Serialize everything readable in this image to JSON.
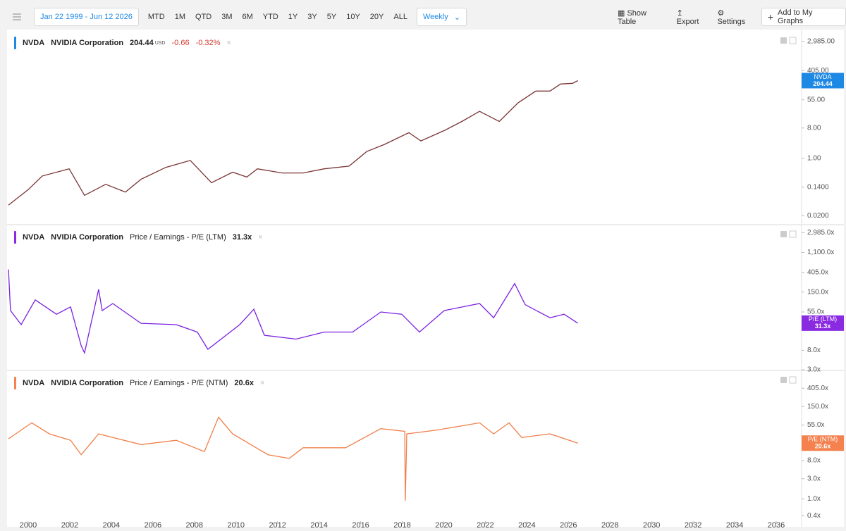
{
  "toolbar": {
    "date_range": "Jan 22 1999 - Jun 12 2026",
    "ranges": [
      "MTD",
      "1M",
      "QTD",
      "3M",
      "6M",
      "YTD",
      "1Y",
      "3Y",
      "5Y",
      "10Y",
      "20Y",
      "ALL"
    ],
    "frequency": "Weekly",
    "show_table": "Show Table",
    "export": "Export",
    "settings": "Settings",
    "add": "Add to My Graphs"
  },
  "chart_data": [
    {
      "type": "line",
      "log_scale": true,
      "header": {
        "ticker": "NVDA",
        "company": "NVIDIA Corporation",
        "last": "204.44",
        "currency": "USD",
        "change": "-0.66",
        "change_pct": "-0.32%"
      },
      "badge": {
        "name": "NVDA",
        "value": "204.44",
        "color": "#1e88e5"
      },
      "color": "#7a3434",
      "x": [
        1999.05,
        2000.0,
        2000.68,
        2001.97,
        2002.71,
        2003.73,
        2004.68,
        2005.43,
        2006.62,
        2007.8,
        2008.82,
        2009.84,
        2010.52,
        2011.03,
        2012.22,
        2013.23,
        2014.25,
        2015.44,
        2016.29,
        2017.14,
        2018.32,
        2018.9,
        2020.02,
        2020.87,
        2021.72,
        2022.67,
        2023.58,
        2024.43,
        2025.11,
        2025.62,
        2026.2,
        2026.45
      ],
      "values": [
        0.041,
        0.118,
        0.3,
        0.49,
        0.08,
        0.17,
        0.1,
        0.24,
        0.54,
        0.87,
        0.19,
        0.39,
        0.28,
        0.49,
        0.37,
        0.37,
        0.49,
        0.59,
        1.6,
        2.6,
        5.8,
        3.3,
        6.7,
        12.5,
        25,
        12.5,
        45,
        100,
        100,
        162,
        170,
        204.44
      ],
      "xlim": [
        1999.05,
        2037.22
      ],
      "ylim": [
        0.0113,
        5800
      ],
      "yticks": [
        {
          "value": 2985,
          "label": "2,985.00"
        },
        {
          "value": 405,
          "label": "405.00"
        },
        {
          "value": 55,
          "label": "55.00"
        },
        {
          "value": 8,
          "label": "8.00"
        },
        {
          "value": 1,
          "label": "1.00"
        },
        {
          "value": 0.14,
          "label": "0.1400"
        },
        {
          "value": 0.02,
          "label": "0.0200"
        }
      ]
    },
    {
      "type": "line",
      "log_scale": true,
      "header": {
        "ticker": "NVDA",
        "company": "NVIDIA Corporation",
        "metric": "Price / Earnings - P/E (LTM)",
        "last": "31.3x"
      },
      "badge": {
        "name": "P/E (LTM)",
        "value": "31.3x",
        "color": "#8a2be2"
      },
      "color": "#7b22e0",
      "x": [
        1999.05,
        1999.15,
        1999.66,
        2000.34,
        2001.36,
        2002.04,
        2002.55,
        2002.71,
        2003.39,
        2003.56,
        2004.07,
        2005.43,
        2007.13,
        2008.14,
        2008.65,
        2010.18,
        2010.86,
        2011.37,
        2012.89,
        2014.25,
        2015.61,
        2016.97,
        2017.98,
        2018.83,
        2020.02,
        2021.72,
        2022.4,
        2023.41,
        2023.92,
        2025.11,
        2025.79,
        2026.45
      ],
      "values": [
        468,
        59,
        29,
        101,
        49,
        71,
        10,
        7,
        172,
        59,
        84,
        31,
        29,
        20,
        8.4,
        29,
        63,
        17,
        14,
        20,
        20,
        55,
        49,
        20,
        59,
        84,
        41,
        230,
        79,
        41,
        49,
        31.3
      ],
      "xlim": [
        1999.05,
        2037.22
      ],
      "ylim": [
        3,
        4300
      ],
      "yticks": [
        {
          "value": 2985,
          "label": "2,985.0x"
        },
        {
          "value": 1100,
          "label": "1,100.0x"
        },
        {
          "value": 405,
          "label": "405.0x"
        },
        {
          "value": 150,
          "label": "150.0x"
        },
        {
          "value": 55,
          "label": "55.0x"
        },
        {
          "value": 8,
          "label": "8.0x"
        },
        {
          "value": 3,
          "label": "3.0x"
        }
      ]
    },
    {
      "type": "line",
      "log_scale": true,
      "header": {
        "ticker": "NVDA",
        "company": "NVIDIA Corporation",
        "metric": "Price / Earnings - P/E (NTM)",
        "last": "20.6x"
      },
      "badge": {
        "name": "P/E (NTM)",
        "value": "20.6x",
        "color": "#f4814e"
      },
      "color": "#f07f4a",
      "x": [
        1999.05,
        2000.17,
        2001.02,
        2002.04,
        2002.55,
        2003.39,
        2005.43,
        2007.13,
        2008.48,
        2009.16,
        2009.84,
        2011.54,
        2012.56,
        2013.23,
        2015.27,
        2016.97,
        2018.12,
        2018.15,
        2018.22,
        2019.68,
        2021.72,
        2022.4,
        2023.14,
        2023.75,
        2025.11,
        2026.45
      ],
      "values": [
        26,
        62,
        34,
        24,
        11,
        34,
        19,
        24,
        13,
        84,
        34,
        11,
        9,
        16,
        16,
        45,
        39,
        0.9,
        34,
        42,
        62,
        34,
        62,
        28,
        34,
        20.6
      ],
      "xlim": [
        1999.05,
        2037.22
      ],
      "ylim": [
        0.3,
        1020
      ],
      "yticks": [
        {
          "value": 405,
          "label": "405.0x"
        },
        {
          "value": 150,
          "label": "150.0x"
        },
        {
          "value": 55,
          "label": "55.0x"
        },
        {
          "value": 8,
          "label": "8.0x"
        },
        {
          "value": 3,
          "label": "3.0x"
        },
        {
          "value": 1,
          "label": "1.0x"
        },
        {
          "value": 0.4,
          "label": "0.4x"
        }
      ],
      "xticks": [
        2000,
        2002,
        2004,
        2006,
        2008,
        2010,
        2012,
        2014,
        2016,
        2018,
        2020,
        2022,
        2024,
        2026,
        2028,
        2030,
        2032,
        2034,
        2036
      ]
    }
  ]
}
